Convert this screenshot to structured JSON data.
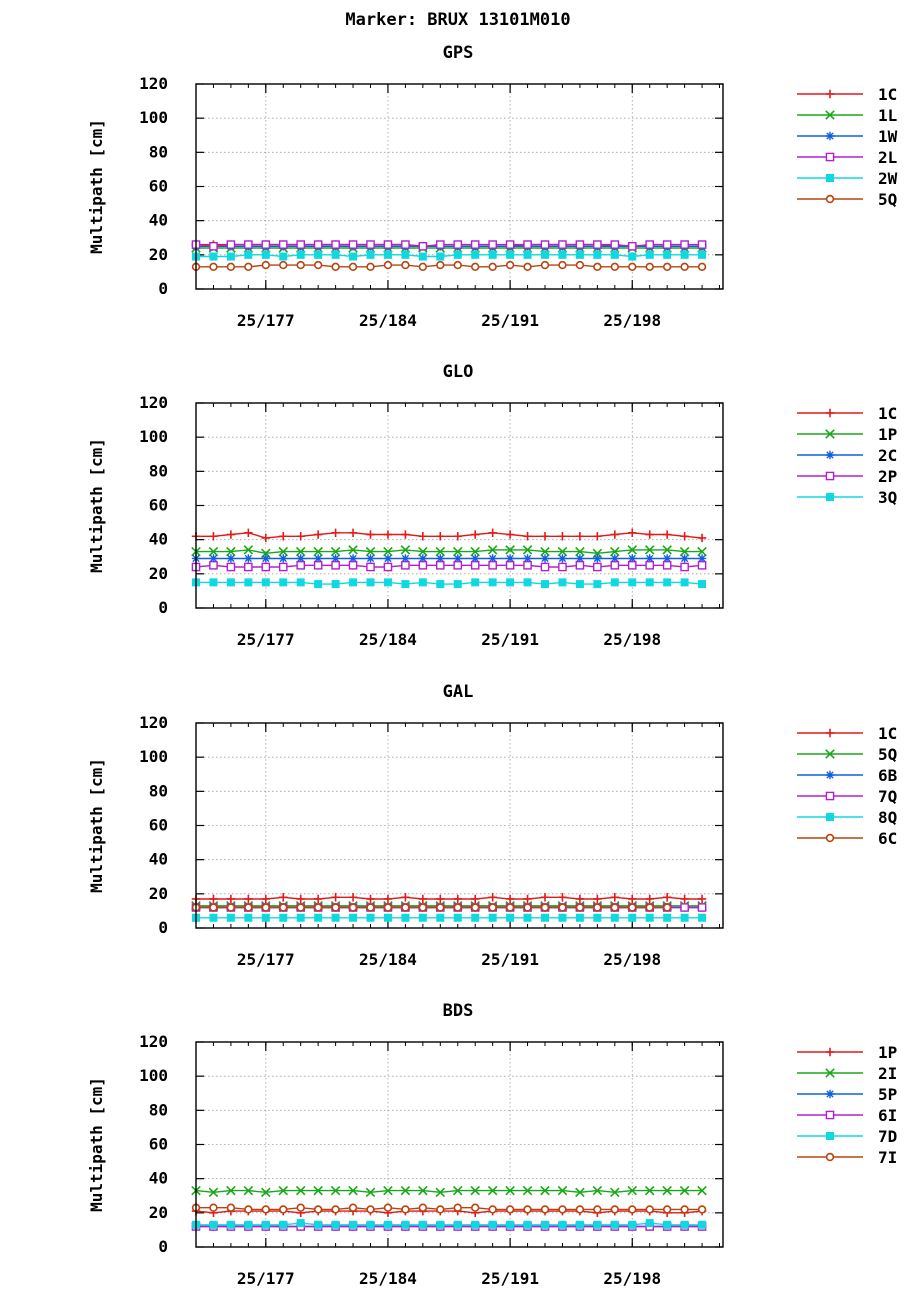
{
  "page_title": "Marker: BRUX 13101M010",
  "chart_data": [
    {
      "type": "line",
      "title": "GPS",
      "ylabel": "Multipath [cm]",
      "ylim": [
        0,
        120
      ],
      "yticks": [
        "0",
        "20",
        "40",
        "60",
        "80",
        "100",
        "120"
      ],
      "xlim": [
        173,
        203.2
      ],
      "xticks": [
        {
          "v": 177,
          "label": "25/177"
        },
        {
          "v": 184,
          "label": "25/184"
        },
        {
          "v": 191,
          "label": "25/191"
        },
        {
          "v": 198,
          "label": "25/198"
        }
      ],
      "x_start": 173,
      "x_step": 1,
      "grid": true,
      "legend_position": "right",
      "series": [
        {
          "name": "1C",
          "color": "#e41a1a",
          "marker": "plus",
          "values": [
            26,
            26,
            26,
            26,
            26,
            26,
            26,
            26,
            26,
            26,
            26,
            26,
            26,
            25,
            25,
            25,
            25,
            25,
            25,
            26,
            26,
            26,
            26,
            26,
            25,
            25,
            25,
            25,
            25,
            25
          ]
        },
        {
          "name": "1L",
          "color": "#18a818",
          "marker": "x",
          "values": [
            24,
            24,
            24,
            24,
            24,
            24,
            24,
            24,
            24,
            24,
            24,
            24,
            24,
            24,
            24,
            24,
            24,
            24,
            24,
            24,
            24,
            24,
            24,
            24,
            24,
            24,
            24,
            24,
            24,
            24
          ]
        },
        {
          "name": "1W",
          "color": "#1060e0",
          "marker": "star",
          "values": [
            25,
            25,
            25,
            25,
            25,
            25,
            25,
            25,
            25,
            25,
            25,
            25,
            25,
            25,
            25,
            25,
            25,
            25,
            25,
            25,
            25,
            25,
            25,
            25,
            25,
            25,
            25,
            25,
            25,
            25
          ]
        },
        {
          "name": "2L",
          "color": "#b020d0",
          "marker": "square",
          "values": [
            26,
            25,
            26,
            26,
            26,
            26,
            26,
            26,
            26,
            26,
            26,
            26,
            26,
            25,
            26,
            26,
            26,
            26,
            26,
            26,
            26,
            26,
            26,
            26,
            26,
            25,
            26,
            26,
            26,
            26
          ]
        },
        {
          "name": "2W",
          "color": "#10d8e0",
          "marker": "filledsquare",
          "values": [
            19,
            19,
            19,
            20,
            20,
            19,
            20,
            20,
            20,
            19,
            20,
            20,
            20,
            19,
            19,
            20,
            20,
            20,
            20,
            20,
            20,
            20,
            20,
            20,
            20,
            19,
            20,
            20,
            20,
            20
          ]
        },
        {
          "name": "5Q",
          "color": "#b84410",
          "marker": "circle",
          "values": [
            13,
            13,
            13,
            13,
            14,
            14,
            14,
            14,
            13,
            13,
            13,
            14,
            14,
            13,
            14,
            14,
            13,
            13,
            14,
            13,
            14,
            14,
            14,
            13,
            13,
            13,
            13,
            13,
            13,
            13
          ]
        }
      ]
    },
    {
      "type": "line",
      "title": "GLO",
      "ylabel": "Multipath [cm]",
      "ylim": [
        0,
        120
      ],
      "yticks": [
        "0",
        "20",
        "40",
        "60",
        "80",
        "100",
        "120"
      ],
      "xlim": [
        173,
        203.2
      ],
      "xticks": [
        {
          "v": 177,
          "label": "25/177"
        },
        {
          "v": 184,
          "label": "25/184"
        },
        {
          "v": 191,
          "label": "25/191"
        },
        {
          "v": 198,
          "label": "25/198"
        }
      ],
      "x_start": 173,
      "x_step": 1,
      "grid": true,
      "legend_position": "right",
      "series": [
        {
          "name": "1C",
          "color": "#e41a1a",
          "marker": "plus",
          "values": [
            42,
            42,
            43,
            44,
            41,
            42,
            42,
            43,
            44,
            44,
            43,
            43,
            43,
            42,
            42,
            42,
            43,
            44,
            43,
            42,
            42,
            42,
            42,
            42,
            43,
            44,
            43,
            43,
            42,
            41
          ]
        },
        {
          "name": "1P",
          "color": "#18a818",
          "marker": "x",
          "values": [
            33,
            33,
            33,
            34,
            32,
            33,
            33,
            33,
            33,
            34,
            33,
            33,
            34,
            33,
            33,
            33,
            33,
            34,
            34,
            34,
            33,
            33,
            33,
            32,
            33,
            34,
            34,
            34,
            33,
            33
          ]
        },
        {
          "name": "2C",
          "color": "#1060e0",
          "marker": "star",
          "values": [
            29,
            29,
            29,
            29,
            29,
            29,
            29,
            29,
            29,
            29,
            29,
            29,
            29,
            29,
            29,
            29,
            29,
            29,
            29,
            29,
            29,
            29,
            29,
            29,
            29,
            29,
            29,
            29,
            29,
            29
          ]
        },
        {
          "name": "2P",
          "color": "#b020d0",
          "marker": "square",
          "values": [
            24,
            25,
            24,
            24,
            24,
            24,
            25,
            25,
            25,
            25,
            24,
            24,
            25,
            25,
            25,
            25,
            25,
            25,
            25,
            25,
            24,
            24,
            25,
            24,
            25,
            25,
            25,
            25,
            24,
            25
          ]
        },
        {
          "name": "3Q",
          "color": "#10d8e0",
          "marker": "filledsquare",
          "values": [
            15,
            15,
            15,
            15,
            15,
            15,
            15,
            14,
            14,
            15,
            15,
            15,
            14,
            15,
            14,
            14,
            15,
            15,
            15,
            15,
            14,
            15,
            14,
            14,
            15,
            15,
            15,
            15,
            15,
            14
          ]
        }
      ]
    },
    {
      "type": "line",
      "title": "GAL",
      "ylabel": "Multipath [cm]",
      "ylim": [
        0,
        120
      ],
      "yticks": [
        "0",
        "20",
        "40",
        "60",
        "80",
        "100",
        "120"
      ],
      "xlim": [
        173,
        203.2
      ],
      "xticks": [
        {
          "v": 177,
          "label": "25/177"
        },
        {
          "v": 184,
          "label": "25/184"
        },
        {
          "v": 191,
          "label": "25/191"
        },
        {
          "v": 198,
          "label": "25/198"
        }
      ],
      "x_start": 173,
      "x_step": 1,
      "grid": true,
      "legend_position": "right",
      "series": [
        {
          "name": "1C",
          "color": "#e41a1a",
          "marker": "plus",
          "values": [
            17,
            17,
            17,
            17,
            17,
            18,
            17,
            17,
            18,
            18,
            17,
            17,
            18,
            17,
            17,
            17,
            17,
            18,
            17,
            17,
            18,
            18,
            17,
            17,
            18,
            17,
            17,
            18,
            17,
            17
          ]
        },
        {
          "name": "5Q",
          "color": "#18a818",
          "marker": "x",
          "values": [
            13,
            13,
            13,
            13,
            13,
            13,
            13,
            13,
            13,
            13,
            13,
            13,
            13,
            13,
            13,
            13,
            13,
            13,
            13,
            13,
            13,
            13,
            13,
            13,
            13,
            13,
            13,
            13,
            13,
            13
          ]
        },
        {
          "name": "6B",
          "color": "#1060e0",
          "marker": "star",
          "values": [
            12,
            12,
            12,
            12,
            12,
            12,
            12,
            12,
            12,
            12,
            12,
            12,
            12,
            12,
            12,
            12,
            12,
            12,
            12,
            12,
            12,
            12,
            12,
            12,
            12,
            12,
            12,
            12,
            12,
            12
          ]
        },
        {
          "name": "7Q",
          "color": "#b020d0",
          "marker": "square",
          "values": [
            12,
            12,
            12,
            12,
            12,
            12,
            12,
            12,
            12,
            12,
            12,
            12,
            12,
            12,
            12,
            12,
            12,
            12,
            12,
            12,
            12,
            12,
            12,
            12,
            12,
            12,
            12,
            12,
            12,
            12
          ]
        },
        {
          "name": "8Q",
          "color": "#10d8e0",
          "marker": "filledsquare",
          "values": [
            6,
            6,
            6,
            6,
            6,
            6,
            6,
            6,
            6,
            6,
            6,
            6,
            6,
            6,
            6,
            6,
            6,
            6,
            6,
            6,
            6,
            6,
            6,
            6,
            6,
            6,
            6,
            6,
            6,
            6
          ]
        },
        {
          "name": "6C",
          "color": "#b84410",
          "marker": "circle",
          "values": [
            12,
            12,
            12,
            12,
            12,
            12,
            12,
            12,
            12,
            12,
            12,
            12,
            12,
            12,
            12,
            12,
            12,
            12,
            12,
            12,
            12,
            12,
            12,
            12,
            12,
            12,
            12,
            12,
            null,
            null
          ]
        }
      ]
    },
    {
      "type": "line",
      "title": "BDS",
      "ylabel": "Multipath [cm]",
      "ylim": [
        0,
        120
      ],
      "yticks": [
        "0",
        "20",
        "40",
        "60",
        "80",
        "100",
        "120"
      ],
      "xlim": [
        173,
        203.2
      ],
      "xticks": [
        {
          "v": 177,
          "label": "25/177"
        },
        {
          "v": 184,
          "label": "25/184"
        },
        {
          "v": 191,
          "label": "25/191"
        },
        {
          "v": 198,
          "label": "25/198"
        }
      ],
      "x_start": 173,
      "x_step": 1,
      "grid": true,
      "legend_position": "right",
      "series": [
        {
          "name": "1P",
          "color": "#e41a1a",
          "marker": "plus",
          "values": [
            21,
            20,
            21,
            21,
            21,
            21,
            20,
            21,
            21,
            21,
            21,
            20,
            21,
            21,
            21,
            21,
            20,
            21,
            21,
            21,
            21,
            21,
            21,
            20,
            21,
            21,
            21,
            20,
            20,
            21
          ]
        },
        {
          "name": "2I",
          "color": "#18a818",
          "marker": "x",
          "values": [
            33,
            32,
            33,
            33,
            32,
            33,
            33,
            33,
            33,
            33,
            32,
            33,
            33,
            33,
            32,
            33,
            33,
            33,
            33,
            33,
            33,
            33,
            32,
            33,
            32,
            33,
            33,
            33,
            33,
            33
          ]
        },
        {
          "name": "5P",
          "color": "#1060e0",
          "marker": "star",
          "values": [
            12,
            12,
            12,
            12,
            12,
            12,
            12,
            12,
            12,
            12,
            12,
            12,
            12,
            12,
            12,
            12,
            12,
            12,
            12,
            12,
            12,
            12,
            12,
            12,
            12,
            12,
            12,
            12,
            12,
            12
          ]
        },
        {
          "name": "6I",
          "color": "#b020d0",
          "marker": "square",
          "values": [
            12,
            12,
            12,
            12,
            12,
            12,
            12,
            12,
            12,
            12,
            12,
            12,
            12,
            12,
            12,
            12,
            12,
            12,
            12,
            12,
            12,
            12,
            12,
            12,
            12,
            12,
            12,
            12,
            12,
            12
          ]
        },
        {
          "name": "7D",
          "color": "#10d8e0",
          "marker": "filledsquare",
          "values": [
            13,
            13,
            13,
            13,
            13,
            13,
            14,
            13,
            13,
            13,
            13,
            13,
            13,
            13,
            13,
            13,
            13,
            13,
            13,
            13,
            13,
            13,
            13,
            13,
            13,
            13,
            14,
            13,
            13,
            13
          ]
        },
        {
          "name": "7I",
          "color": "#b84410",
          "marker": "circle",
          "values": [
            23,
            23,
            23,
            22,
            22,
            22,
            23,
            22,
            22,
            23,
            22,
            23,
            22,
            23,
            22,
            23,
            23,
            22,
            22,
            22,
            22,
            22,
            22,
            22,
            22,
            22,
            22,
            22,
            22,
            22
          ]
        }
      ]
    }
  ]
}
